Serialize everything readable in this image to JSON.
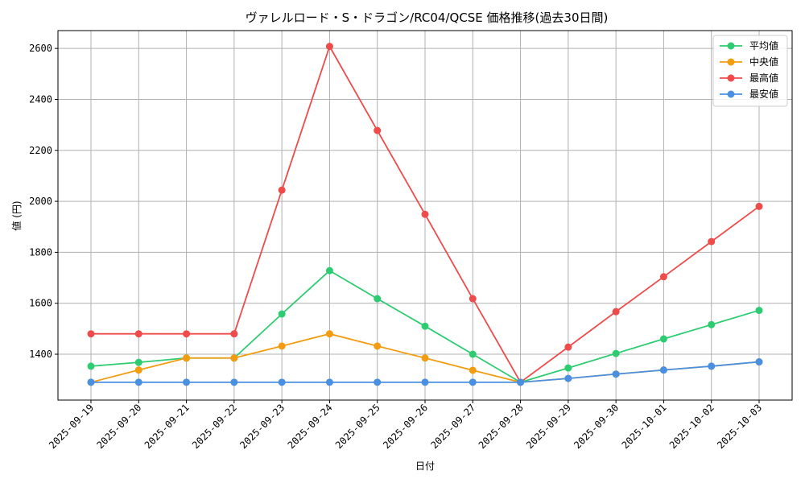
{
  "chart_data": {
    "type": "line",
    "title": "ヴァレルロード・S・ドラゴン/RC04/QCSE 価格推移(過去30日間)",
    "xlabel": "日付",
    "ylabel": "値 (円)",
    "ylim": [
      1220,
      2670
    ],
    "yticks": [
      1400,
      1600,
      1800,
      2000,
      2200,
      2400,
      2600
    ],
    "grid": true,
    "legend_position": "top-right",
    "categories": [
      "2025-09-19",
      "2025-09-20",
      "2025-09-21",
      "2025-09-22",
      "2025-09-23",
      "2025-09-24",
      "2025-09-25",
      "2025-09-26",
      "2025-09-27",
      "2025-09-28",
      "2025-09-29",
      "2025-09-30",
      "2025-10-01",
      "2025-10-02",
      "2025-10-03"
    ],
    "series": [
      {
        "name": "平均値",
        "color": "#2ecc71",
        "values": [
          1353,
          1368,
          1385,
          1385,
          1558,
          1728,
          1618,
          1510,
          1400,
          1290,
          1346,
          1403,
          1460,
          1516,
          1572
        ]
      },
      {
        "name": "中央値",
        "color": "#f39c12",
        "values": [
          1290,
          1338,
          1385,
          1385,
          1432,
          1480,
          1432,
          1385,
          1337,
          1290,
          1305,
          1322,
          1338,
          1353,
          1370
        ]
      },
      {
        "name": "最高値",
        "color": "#ef4b4b",
        "values": [
          1480,
          1480,
          1480,
          1480,
          2044,
          2608,
          2278,
          1949,
          1618,
          1290,
          1428,
          1567,
          1704,
          1842,
          1980
        ]
      },
      {
        "name": "最安値",
        "color": "#4a90e2",
        "values": [
          1290,
          1290,
          1290,
          1290,
          1290,
          1290,
          1290,
          1290,
          1290,
          1290,
          1305,
          1322,
          1338,
          1353,
          1370
        ]
      }
    ]
  }
}
